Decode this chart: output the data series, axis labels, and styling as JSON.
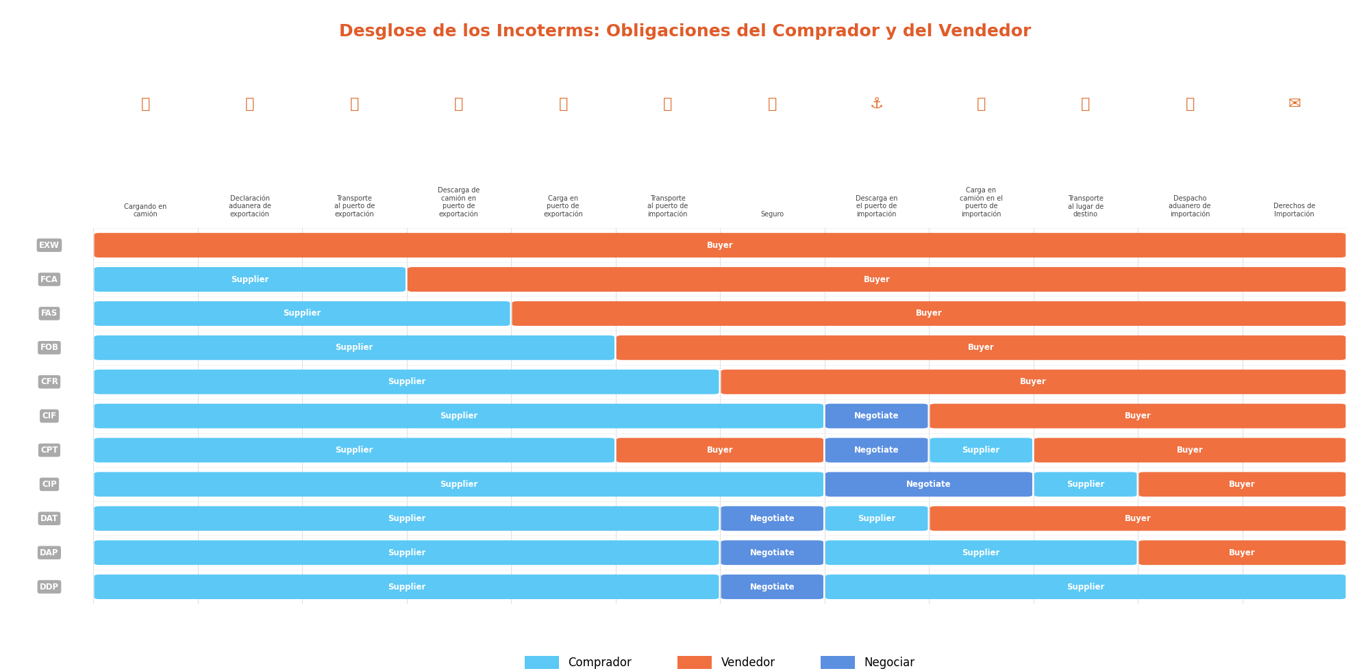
{
  "title": "Desglose de los Incoterms: Obligaciones del Comprador y del Vendedor",
  "title_color": "#E05C2A",
  "background_color": "#FFFFFF",
  "colors": {
    "buyer": "#5BC8F5",
    "supplier": "#F07040",
    "negotiate": "#5B8FE0"
  },
  "col_labels": [
    "Cargando en\ncamión",
    "Declaración\naduanera de\nexportación",
    "Transporte\nal puerto de\nexportación",
    "Descarga de\ncamión en\npuerto de\nexportación",
    "Carga en\npuerto de\nexportación",
    "Transporte\nal puerto de\nimportación",
    "Seguro",
    "Descarga en\nel puerto de\nimportación",
    "Carga en\ncamión en el\npuerto de\nimportación",
    "Transporte\nal lugar de\ndestino",
    "Despacho\naduanero de\nimportación",
    "Derechos de\nImportación"
  ],
  "icon_chars": [
    "🚚",
    "📋",
    "🚚",
    "📦",
    "🏷",
    "🚢",
    "📦",
    "⚓",
    "🚚",
    "🚚",
    "📋",
    "✉"
  ],
  "incoterms": [
    "EXW",
    "FCA",
    "FAS",
    "FOB",
    "CFR",
    "CIF",
    "CPT",
    "CIP",
    "DAT",
    "DAP",
    "DDP"
  ],
  "rows": {
    "EXW": [
      {
        "label": "Buyer",
        "type": "supplier",
        "start": 0,
        "end": 12
      }
    ],
    "FCA": [
      {
        "label": "Supplier",
        "type": "buyer",
        "start": 0,
        "end": 3
      },
      {
        "label": "Buyer",
        "type": "supplier",
        "start": 3,
        "end": 12
      }
    ],
    "FAS": [
      {
        "label": "Supplier",
        "type": "buyer",
        "start": 0,
        "end": 4
      },
      {
        "label": "Buyer",
        "type": "supplier",
        "start": 4,
        "end": 12
      }
    ],
    "FOB": [
      {
        "label": "Supplier",
        "type": "buyer",
        "start": 0,
        "end": 5
      },
      {
        "label": "Buyer",
        "type": "supplier",
        "start": 5,
        "end": 12
      }
    ],
    "CFR": [
      {
        "label": "Supplier",
        "type": "buyer",
        "start": 0,
        "end": 6
      },
      {
        "label": "Buyer",
        "type": "supplier",
        "start": 6,
        "end": 12
      }
    ],
    "CIF": [
      {
        "label": "Supplier",
        "type": "buyer",
        "start": 0,
        "end": 7
      },
      {
        "label": "Negotiate",
        "type": "negotiate",
        "start": 7,
        "end": 8
      },
      {
        "label": "Buyer",
        "type": "supplier",
        "start": 8,
        "end": 12
      }
    ],
    "CPT": [
      {
        "label": "Supplier",
        "type": "buyer",
        "start": 0,
        "end": 5
      },
      {
        "label": "Buyer",
        "type": "supplier",
        "start": 5,
        "end": 7
      },
      {
        "label": "Negotiate",
        "type": "negotiate",
        "start": 7,
        "end": 8
      },
      {
        "label": "Supplier",
        "type": "buyer",
        "start": 8,
        "end": 9
      },
      {
        "label": "Buyer",
        "type": "supplier",
        "start": 9,
        "end": 12
      }
    ],
    "CIP": [
      {
        "label": "Supplier",
        "type": "buyer",
        "start": 0,
        "end": 7
      },
      {
        "label": "Negotiate",
        "type": "negotiate",
        "start": 7,
        "end": 9
      },
      {
        "label": "Supplier",
        "type": "buyer",
        "start": 9,
        "end": 10
      },
      {
        "label": "Buyer",
        "type": "supplier",
        "start": 10,
        "end": 12
      }
    ],
    "DAT": [
      {
        "label": "Supplier",
        "type": "buyer",
        "start": 0,
        "end": 6
      },
      {
        "label": "Negotiate",
        "type": "negotiate",
        "start": 6,
        "end": 7
      },
      {
        "label": "Supplier",
        "type": "buyer",
        "start": 7,
        "end": 8
      },
      {
        "label": "Buyer",
        "type": "supplier",
        "start": 8,
        "end": 12
      }
    ],
    "DAP": [
      {
        "label": "Supplier",
        "type": "buyer",
        "start": 0,
        "end": 6
      },
      {
        "label": "Negotiate",
        "type": "negotiate",
        "start": 6,
        "end": 7
      },
      {
        "label": "Supplier",
        "type": "buyer",
        "start": 7,
        "end": 10
      },
      {
        "label": "Buyer",
        "type": "supplier",
        "start": 10,
        "end": 12
      }
    ],
    "DDP": [
      {
        "label": "Supplier",
        "type": "buyer",
        "start": 0,
        "end": 6
      },
      {
        "label": "Negotiate",
        "type": "negotiate",
        "start": 6,
        "end": 7
      },
      {
        "label": "Supplier",
        "type": "buyer",
        "start": 7,
        "end": 12
      }
    ]
  },
  "legend_labels": [
    "Comprador",
    "Vendedor",
    "Negociar"
  ],
  "legend_colors": [
    "#5BC8F5",
    "#F07040",
    "#5B8FE0"
  ]
}
